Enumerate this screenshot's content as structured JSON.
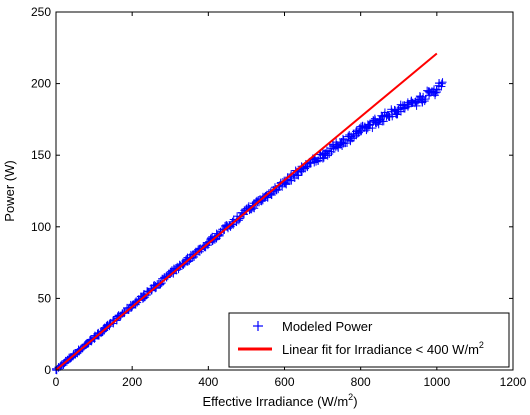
{
  "chart_data": {
    "type": "scatter",
    "title": "",
    "xlabel": "Effective Irradiance (W/m",
    "xlabel_sup": "2",
    "xlabel_end": ")",
    "ylabel": "Power (W)",
    "xlim": [
      0,
      1200
    ],
    "ylim": [
      0,
      250
    ],
    "xticks": [
      "0",
      "200",
      "400",
      "600",
      "800",
      "1000",
      "1200"
    ],
    "yticks": [
      "0",
      "50",
      "100",
      "150",
      "200",
      "250"
    ],
    "grid": false,
    "legend_position": "bottom-right",
    "series": [
      {
        "name": "Modeled Power",
        "type": "scatter",
        "marker": "plus",
        "color": "#0000ff",
        "x": [
          0,
          20,
          40,
          60,
          80,
          100,
          130,
          160,
          200,
          250,
          300,
          350,
          400,
          450,
          500,
          550,
          600,
          650,
          700,
          750,
          800,
          850,
          900,
          950,
          1000,
          1015
        ],
        "y": [
          0,
          4.5,
          9,
          13.5,
          18,
          22.5,
          29,
          36,
          45,
          56,
          67,
          78,
          89,
          100,
          111,
          121,
          131,
          141,
          150,
          159,
          167,
          175,
          182,
          188,
          196,
          201
        ]
      },
      {
        "name": "Linear fit for Irradiance < 400 W/m",
        "name_sup": "2",
        "type": "line",
        "color": "#ff0000",
        "x": [
          0,
          1000
        ],
        "y": [
          0,
          221
        ]
      }
    ]
  }
}
